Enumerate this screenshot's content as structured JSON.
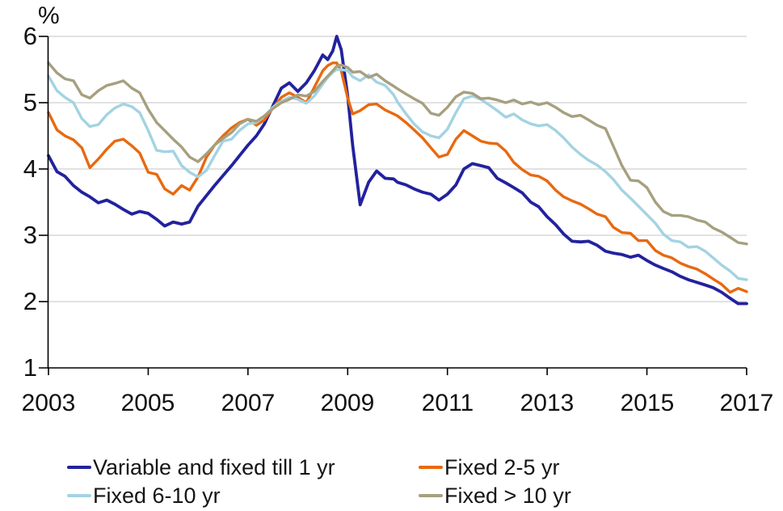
{
  "chart": {
    "unit_label": "%",
    "y_axis": {
      "ticks": [
        "6",
        "5",
        "4",
        "3",
        "2",
        "1"
      ],
      "tick_values": [
        6,
        5,
        4,
        3,
        2,
        1
      ]
    },
    "x_axis": {
      "ticks": [
        "2003",
        "2005",
        "2007",
        "2009",
        "2011",
        "2013",
        "2015",
        "2017"
      ],
      "tick_values": [
        2003,
        2005,
        2007,
        2009,
        2011,
        2013,
        2015,
        2017
      ]
    },
    "colors": {
      "grid": "#D9D9D9",
      "axis": "#000000",
      "text": "#1a1a1a"
    }
  },
  "legend": {
    "items": [
      {
        "label": "Variable and fixed till 1 yr",
        "color": "#22229E"
      },
      {
        "label": "Fixed 2-5 yr",
        "color": "#E8690F"
      },
      {
        "label": "Fixed 6-10 yr",
        "color": "#A3D3E2"
      },
      {
        "label": "Fixed > 10 yr",
        "color": "#A6A080"
      }
    ]
  },
  "chart_data": {
    "type": "line",
    "title": "",
    "xlabel": "",
    "ylabel": "%",
    "xlim": [
      2003,
      2017.05
    ],
    "ylim": [
      1,
      6
    ],
    "grid": "horizontal",
    "legend_position": "bottom",
    "x": [
      2003,
      2003.17,
      2003.33,
      2003.5,
      2003.67,
      2003.83,
      2004,
      2004.17,
      2004.33,
      2004.5,
      2004.67,
      2004.83,
      2005,
      2005.17,
      2005.33,
      2005.5,
      2005.67,
      2005.83,
      2006,
      2006.17,
      2006.33,
      2006.5,
      2006.67,
      2006.83,
      2007,
      2007.17,
      2007.33,
      2007.5,
      2007.67,
      2007.83,
      2008,
      2008.17,
      2008.33,
      2008.5,
      2008.6,
      2008.7,
      2008.78,
      2008.87,
      2009,
      2009.1,
      2009.25,
      2009.42,
      2009.58,
      2009.75,
      2009.92,
      2010,
      2010.17,
      2010.33,
      2010.5,
      2010.67,
      2010.83,
      2011,
      2011.17,
      2011.33,
      2011.5,
      2011.67,
      2011.83,
      2012,
      2012.17,
      2012.33,
      2012.5,
      2012.67,
      2012.83,
      2013,
      2013.17,
      2013.33,
      2013.5,
      2013.67,
      2013.83,
      2014,
      2014.17,
      2014.33,
      2014.5,
      2014.67,
      2014.83,
      2015,
      2015.17,
      2015.33,
      2015.5,
      2015.67,
      2015.83,
      2016,
      2016.17,
      2016.33,
      2016.5,
      2016.67,
      2016.83,
      2017
    ],
    "series": [
      {
        "name": "Variable and fixed till 1 yr",
        "color": "#22229E",
        "values": [
          4.2,
          3.96,
          3.89,
          3.75,
          3.65,
          3.58,
          3.49,
          3.53,
          3.47,
          3.39,
          3.32,
          3.36,
          3.33,
          3.24,
          3.14,
          3.2,
          3.17,
          3.2,
          3.44,
          3.6,
          3.75,
          3.9,
          4.05,
          4.2,
          4.36,
          4.5,
          4.68,
          4.95,
          5.22,
          5.3,
          5.17,
          5.3,
          5.48,
          5.72,
          5.65,
          5.78,
          6.0,
          5.8,
          5.1,
          4.35,
          3.46,
          3.8,
          3.97,
          3.86,
          3.85,
          3.8,
          3.76,
          3.7,
          3.65,
          3.62,
          3.53,
          3.62,
          3.76,
          4.0,
          4.08,
          4.05,
          4.02,
          3.86,
          3.79,
          3.72,
          3.64,
          3.5,
          3.43,
          3.28,
          3.16,
          3.02,
          2.91,
          2.9,
          2.91,
          2.85,
          2.76,
          2.73,
          2.71,
          2.67,
          2.7,
          2.62,
          2.55,
          2.5,
          2.45,
          2.38,
          2.33,
          2.29,
          2.25,
          2.21,
          2.14,
          2.05,
          1.97,
          1.97
        ]
      },
      {
        "name": "Fixed 2-5 yr",
        "color": "#E8690F",
        "values": [
          4.85,
          4.59,
          4.5,
          4.44,
          4.32,
          4.02,
          4.15,
          4.3,
          4.42,
          4.45,
          4.35,
          4.24,
          3.95,
          3.92,
          3.7,
          3.62,
          3.75,
          3.68,
          3.88,
          4.18,
          4.36,
          4.5,
          4.62,
          4.7,
          4.75,
          4.66,
          4.74,
          4.92,
          5.08,
          5.15,
          5.08,
          5.0,
          5.23,
          5.48,
          5.56,
          5.6,
          5.6,
          5.48,
          5.07,
          4.83,
          4.88,
          4.97,
          4.98,
          4.89,
          4.83,
          4.8,
          4.7,
          4.59,
          4.47,
          4.32,
          4.18,
          4.22,
          4.45,
          4.58,
          4.5,
          4.42,
          4.39,
          4.38,
          4.27,
          4.1,
          3.99,
          3.91,
          3.89,
          3.82,
          3.68,
          3.58,
          3.52,
          3.47,
          3.4,
          3.32,
          3.28,
          3.12,
          3.04,
          3.03,
          2.92,
          2.92,
          2.77,
          2.7,
          2.66,
          2.58,
          2.53,
          2.49,
          2.42,
          2.34,
          2.26,
          2.14,
          2.2,
          2.15
        ]
      },
      {
        "name": "Fixed 6-10 yr",
        "color": "#A3D3E2",
        "values": [
          5.4,
          5.18,
          5.08,
          5.0,
          4.76,
          4.64,
          4.67,
          4.82,
          4.92,
          4.98,
          4.94,
          4.85,
          4.58,
          4.28,
          4.26,
          4.27,
          4.05,
          3.95,
          3.88,
          3.98,
          4.2,
          4.42,
          4.45,
          4.58,
          4.68,
          4.7,
          4.8,
          4.93,
          5.02,
          5.08,
          5.05,
          4.99,
          5.1,
          5.28,
          5.38,
          5.46,
          5.5,
          5.5,
          5.48,
          5.39,
          5.33,
          5.42,
          5.31,
          5.26,
          5.12,
          5.01,
          4.83,
          4.68,
          4.56,
          4.5,
          4.47,
          4.6,
          4.85,
          5.06,
          5.1,
          5.05,
          4.97,
          4.88,
          4.78,
          4.83,
          4.74,
          4.68,
          4.65,
          4.67,
          4.58,
          4.47,
          4.33,
          4.22,
          4.13,
          4.06,
          3.96,
          3.84,
          3.68,
          3.56,
          3.44,
          3.31,
          3.18,
          3.02,
          2.92,
          2.9,
          2.82,
          2.83,
          2.76,
          2.66,
          2.55,
          2.46,
          2.35,
          2.33
        ]
      },
      {
        "name": "Fixed > 10 yr",
        "color": "#A6A080",
        "values": [
          5.6,
          5.45,
          5.36,
          5.33,
          5.12,
          5.07,
          5.18,
          5.26,
          5.29,
          5.33,
          5.22,
          5.15,
          4.9,
          4.7,
          4.58,
          4.45,
          4.33,
          4.18,
          4.11,
          4.23,
          4.36,
          4.46,
          4.55,
          4.68,
          4.75,
          4.72,
          4.8,
          4.91,
          5.0,
          5.05,
          5.12,
          5.1,
          5.17,
          5.32,
          5.4,
          5.48,
          5.55,
          5.57,
          5.53,
          5.46,
          5.47,
          5.38,
          5.43,
          5.33,
          5.25,
          5.21,
          5.13,
          5.06,
          4.99,
          4.84,
          4.81,
          4.93,
          5.09,
          5.16,
          5.14,
          5.06,
          5.07,
          5.04,
          5.0,
          5.04,
          4.98,
          5.01,
          4.97,
          5.0,
          4.93,
          4.85,
          4.79,
          4.81,
          4.74,
          4.66,
          4.61,
          4.34,
          4.05,
          3.83,
          3.82,
          3.72,
          3.5,
          3.36,
          3.3,
          3.3,
          3.28,
          3.23,
          3.2,
          3.11,
          3.05,
          2.97,
          2.89,
          2.87
        ]
      }
    ]
  }
}
